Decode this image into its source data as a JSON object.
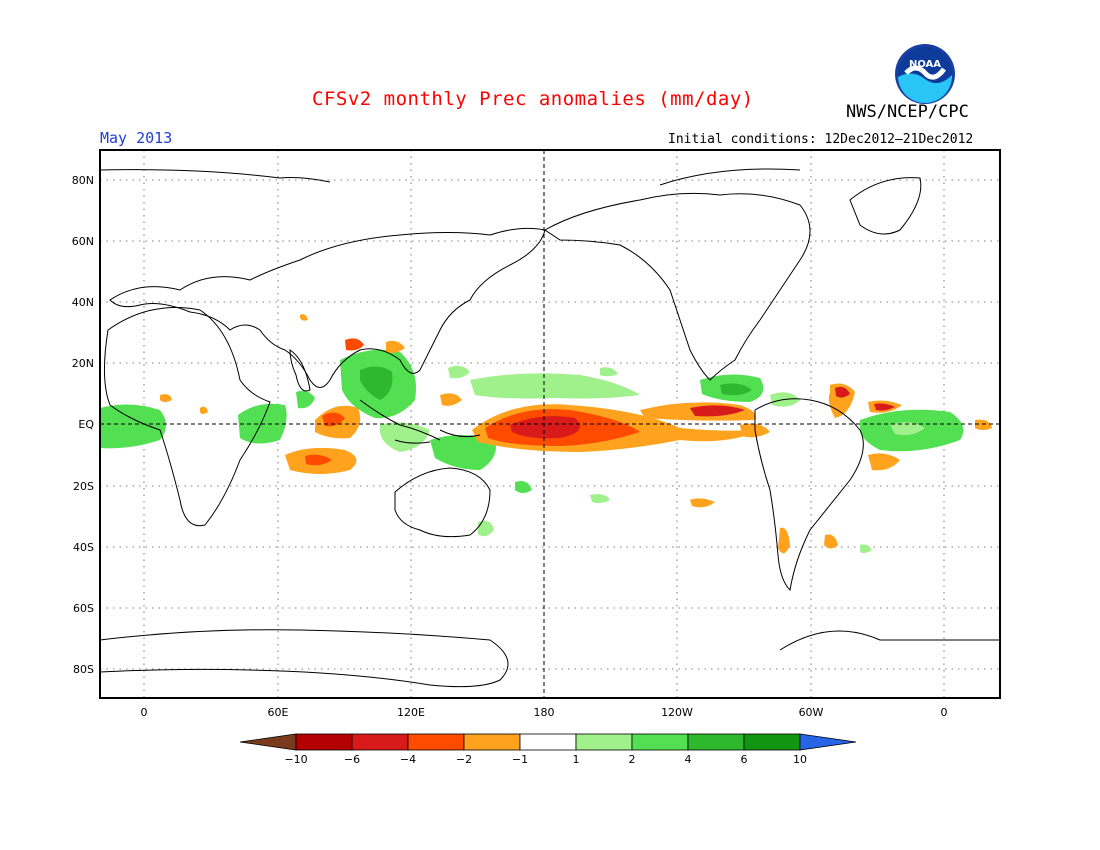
{
  "title": "CFSv2 monthly Prec anomalies (mm/day)",
  "agency": "NWS/NCEP/CPC",
  "logo_text": "NOAA",
  "month_label": "May 2013",
  "initial_conditions": "Initial conditions: 12Dec2012–21Dec2012",
  "lat_labels": [
    "80N",
    "60N",
    "40N",
    "20N",
    "EQ",
    "20S",
    "40S",
    "60S",
    "80S"
  ],
  "lon_labels": [
    "0",
    "60E",
    "120E",
    "180",
    "120W",
    "60W",
    "0"
  ],
  "colorbar": {
    "colors": [
      "#7a3b1c",
      "#b40000",
      "#d91a1a",
      "#ff4b00",
      "#ffa21e",
      "#ffffff",
      "#a0f08c",
      "#52e052",
      "#2eb82e",
      "#129612",
      "#2864e6"
    ],
    "labels": [
      "−10",
      "−6",
      "−4",
      "−2",
      "−1",
      "1",
      "2",
      "4",
      "6",
      "10"
    ]
  }
}
